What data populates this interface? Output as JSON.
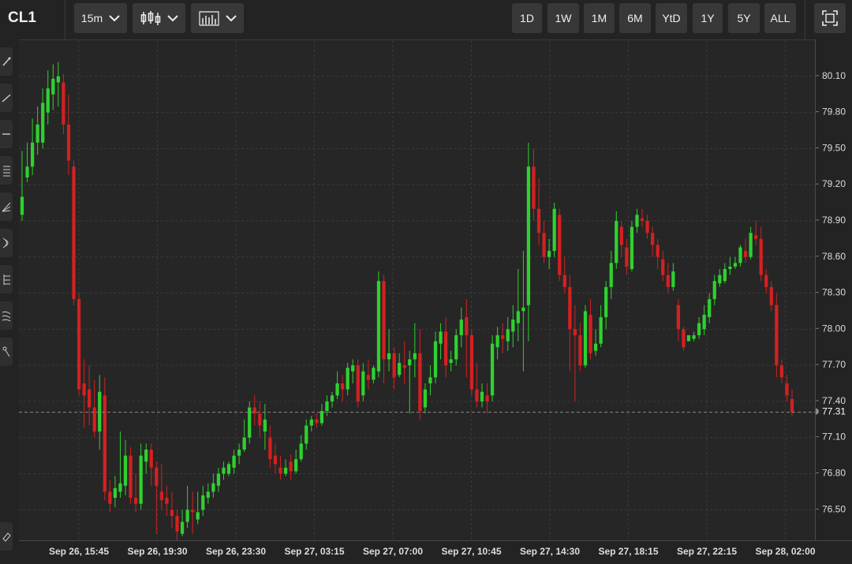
{
  "header": {
    "symbol": "CL1",
    "interval": "15m",
    "ranges": [
      "1D",
      "1W",
      "1M",
      "6M",
      "YtD",
      "1Y",
      "5Y",
      "ALL"
    ]
  },
  "sidebar": {
    "tools": [
      "pencil-icon",
      "trend-line-icon",
      "horizontal-line-icon",
      "fib-icon",
      "pitchfork-icon",
      "arc-icon",
      "channel-icon",
      "wave-icon",
      "brush-icon"
    ],
    "bottom_tool": "eraser-icon"
  },
  "colors": {
    "up": "#2fd12f",
    "down": "#d42020",
    "background": "#262626",
    "grid": "#3a3a3a"
  },
  "chart_data": {
    "type": "candlestick",
    "symbol": "CL1",
    "interval": "15m",
    "last_price": "77.31",
    "ylim": [
      76.24,
      80.4
    ],
    "y_ticks": [
      "80.10",
      "79.80",
      "79.50",
      "79.20",
      "78.90",
      "78.60",
      "78.30",
      "78.00",
      "77.70",
      "77.40",
      "77.10",
      "76.80",
      "76.50"
    ],
    "x_ticks": [
      "Sep 26, 15:45",
      "Sep 26, 19:30",
      "Sep 26, 23:30",
      "Sep 27, 03:15",
      "Sep 27, 07:00",
      "Sep 27, 10:45",
      "Sep 27, 14:30",
      "Sep 27, 18:15",
      "Sep 27, 22:15",
      "Sep 28, 02:00"
    ],
    "grid": true,
    "candles": [
      [
        78.95,
        79.48,
        79.1,
        78.9
      ],
      [
        79.26,
        79.55,
        79.35,
        79.22
      ],
      [
        79.35,
        79.75,
        79.55,
        79.28
      ],
      [
        79.55,
        79.85,
        79.7,
        79.45
      ],
      [
        79.55,
        80.0,
        79.88,
        79.5
      ],
      [
        79.8,
        80.15,
        80.0,
        79.7
      ],
      [
        79.95,
        80.2,
        80.08,
        79.82
      ],
      [
        80.05,
        80.22,
        80.1,
        79.85
      ],
      [
        80.05,
        80.12,
        79.7,
        79.62
      ],
      [
        79.7,
        79.95,
        79.4,
        79.28
      ],
      [
        79.35,
        79.4,
        78.25,
        78.2
      ],
      [
        78.25,
        78.3,
        77.5,
        77.45
      ],
      [
        77.55,
        77.75,
        77.45,
        77.18
      ],
      [
        77.5,
        77.7,
        77.35,
        77.2
      ],
      [
        77.35,
        77.58,
        77.15,
        77.1
      ],
      [
        77.15,
        77.62,
        77.48,
        77.0
      ],
      [
        77.45,
        77.6,
        76.65,
        76.58
      ],
      [
        76.65,
        76.75,
        76.55,
        76.48
      ],
      [
        76.6,
        76.78,
        76.68,
        76.52
      ],
      [
        76.65,
        77.15,
        76.72,
        76.6
      ],
      [
        76.7,
        77.08,
        76.95,
        76.62
      ],
      [
        76.95,
        77.02,
        76.6,
        76.55
      ],
      [
        76.6,
        76.8,
        76.55,
        76.48
      ],
      [
        76.55,
        77.05,
        76.95,
        76.5
      ],
      [
        76.9,
        77.05,
        77.0,
        76.8
      ],
      [
        77.0,
        77.05,
        76.85,
        76.7
      ],
      [
        76.85,
        76.9,
        76.7,
        76.3
      ],
      [
        76.65,
        76.88,
        76.58,
        76.5
      ],
      [
        76.6,
        76.7,
        76.55,
        76.45
      ],
      [
        76.5,
        76.65,
        76.45,
        76.35
      ],
      [
        76.45,
        76.5,
        76.32,
        76.22
      ],
      [
        76.3,
        76.5,
        76.4,
        76.28
      ],
      [
        76.4,
        76.7,
        76.5,
        76.35
      ],
      [
        76.5,
        76.65,
        76.48,
        76.3
      ],
      [
        76.42,
        76.65,
        76.48,
        76.38
      ],
      [
        76.5,
        76.7,
        76.62,
        76.45
      ],
      [
        76.6,
        76.72,
        76.65,
        76.55
      ],
      [
        76.65,
        76.8,
        76.72,
        76.6
      ],
      [
        76.7,
        76.85,
        76.8,
        76.65
      ],
      [
        76.8,
        76.9,
        76.85,
        76.75
      ],
      [
        76.8,
        76.9,
        76.88,
        76.78
      ],
      [
        76.85,
        77.0,
        76.95,
        76.8
      ],
      [
        76.95,
        77.05,
        77.0,
        76.88
      ],
      [
        77.0,
        77.25,
        77.1,
        76.98
      ],
      [
        77.1,
        77.4,
        77.35,
        77.05
      ],
      [
        77.35,
        77.45,
        77.3,
        77.2
      ],
      [
        77.3,
        77.4,
        77.2,
        77.1
      ],
      [
        77.15,
        77.38,
        77.25,
        77.0
      ],
      [
        77.1,
        77.2,
        76.92,
        76.85
      ],
      [
        76.95,
        77.05,
        76.88,
        76.8
      ],
      [
        76.85,
        76.95,
        76.8,
        76.75
      ],
      [
        76.8,
        76.92,
        76.85,
        76.78
      ],
      [
        76.9,
        76.96,
        76.82,
        76.75
      ],
      [
        76.82,
        77.0,
        76.92,
        76.8
      ],
      [
        76.92,
        77.12,
        77.05,
        76.9
      ],
      [
        77.05,
        77.25,
        77.2,
        77.0
      ],
      [
        77.2,
        77.28,
        77.25,
        77.15
      ],
      [
        77.25,
        77.3,
        77.22,
        77.18
      ],
      [
        77.22,
        77.38,
        77.32,
        77.2
      ],
      [
        77.32,
        77.45,
        77.4,
        77.28
      ],
      [
        77.4,
        77.48,
        77.45,
        77.35
      ],
      [
        77.45,
        77.65,
        77.55,
        77.42
      ],
      [
        77.55,
        77.62,
        77.5,
        77.4
      ],
      [
        77.5,
        77.72,
        77.68,
        77.45
      ],
      [
        77.65,
        77.75,
        77.7,
        77.55
      ],
      [
        77.7,
        77.75,
        77.4,
        77.35
      ],
      [
        77.45,
        77.72,
        77.65,
        77.4
      ],
      [
        77.62,
        77.75,
        77.58,
        77.5
      ],
      [
        77.58,
        77.7,
        77.68,
        77.55
      ],
      [
        77.65,
        78.48,
        78.4,
        77.6
      ],
      [
        78.4,
        78.45,
        77.75,
        77.55
      ],
      [
        77.75,
        78.0,
        77.8,
        77.65
      ],
      [
        77.8,
        77.85,
        77.6,
        77.5
      ],
      [
        77.62,
        77.8,
        77.72,
        77.6
      ],
      [
        77.7,
        77.9,
        77.68,
        77.55
      ],
      [
        77.7,
        77.82,
        77.75,
        77.3
      ],
      [
        77.75,
        78.05,
        77.8,
        77.6
      ],
      [
        77.8,
        78.0,
        77.32,
        77.25
      ],
      [
        77.35,
        77.55,
        77.5,
        77.3
      ],
      [
        77.55,
        77.7,
        77.6,
        77.45
      ],
      [
        77.6,
        77.98,
        77.9,
        77.55
      ],
      [
        77.88,
        78.05,
        77.98,
        77.75
      ],
      [
        77.98,
        78.1,
        77.7,
        77.6
      ],
      [
        77.72,
        77.82,
        77.75,
        77.65
      ],
      [
        77.75,
        78.0,
        77.95,
        77.7
      ],
      [
        77.95,
        78.18,
        78.08,
        77.85
      ],
      [
        78.1,
        78.25,
        77.95,
        77.6
      ],
      [
        77.95,
        78.0,
        77.5,
        77.45
      ],
      [
        77.5,
        77.72,
        77.4,
        77.35
      ],
      [
        77.4,
        77.55,
        77.48,
        77.35
      ],
      [
        77.45,
        77.55,
        77.4,
        77.3
      ],
      [
        77.45,
        77.95,
        77.88,
        77.4
      ],
      [
        77.85,
        78.02,
        77.95,
        77.75
      ],
      [
        77.95,
        78.05,
        77.92,
        77.8
      ],
      [
        77.9,
        78.1,
        78.0,
        77.82
      ],
      [
        77.98,
        78.2,
        78.08,
        77.85
      ],
      [
        78.05,
        78.5,
        78.15,
        77.9
      ],
      [
        78.15,
        78.65,
        78.18,
        77.65
      ],
      [
        78.2,
        79.55,
        79.35,
        77.9
      ],
      [
        79.35,
        79.5,
        79.0,
        78.9
      ],
      [
        79.0,
        79.25,
        78.8,
        78.7
      ],
      [
        78.8,
        78.9,
        78.6,
        78.55
      ],
      [
        78.6,
        78.75,
        78.65,
        78.5
      ],
      [
        78.65,
        79.05,
        79.0,
        78.6
      ],
      [
        78.95,
        79.0,
        78.45,
        78.4
      ],
      [
        78.45,
        78.6,
        78.35,
        78.3
      ],
      [
        78.35,
        78.45,
        78.0,
        77.65
      ],
      [
        78.0,
        78.2,
        77.95,
        77.4
      ],
      [
        77.95,
        78.05,
        77.7,
        77.65
      ],
      [
        77.7,
        78.2,
        78.15,
        77.68
      ],
      [
        78.12,
        78.25,
        77.8,
        77.75
      ],
      [
        77.82,
        78.0,
        77.88,
        77.78
      ],
      [
        77.88,
        78.2,
        78.1,
        77.85
      ],
      [
        78.1,
        78.4,
        78.35,
        78.0
      ],
      [
        78.35,
        78.65,
        78.55,
        78.25
      ],
      [
        78.55,
        78.98,
        78.9,
        78.5
      ],
      [
        78.85,
        78.9,
        78.7,
        78.6
      ],
      [
        78.68,
        78.75,
        78.52,
        78.45
      ],
      [
        78.5,
        78.9,
        78.85,
        78.48
      ],
      [
        78.85,
        79.0,
        78.95,
        78.8
      ],
      [
        78.92,
        79.0,
        78.9,
        78.85
      ],
      [
        78.9,
        78.95,
        78.8,
        78.75
      ],
      [
        78.8,
        78.85,
        78.7,
        78.6
      ],
      [
        78.7,
        78.75,
        78.6,
        78.5
      ],
      [
        78.58,
        78.65,
        78.45,
        78.4
      ],
      [
        78.45,
        78.55,
        78.35,
        78.3
      ],
      [
        78.35,
        78.55,
        78.48,
        78.32
      ],
      [
        78.2,
        78.25,
        78.0,
        77.9
      ],
      [
        78.0,
        78.02,
        77.85,
        77.82
      ],
      [
        77.9,
        77.95,
        77.95,
        77.92
      ],
      [
        77.92,
        77.98,
        77.95,
        77.9
      ],
      [
        77.95,
        78.1,
        78.05,
        77.92
      ],
      [
        78.0,
        78.2,
        78.12,
        77.95
      ],
      [
        78.1,
        78.3,
        78.25,
        78.05
      ],
      [
        78.25,
        78.45,
        78.4,
        78.2
      ],
      [
        78.38,
        78.5,
        78.45,
        78.35
      ],
      [
        78.4,
        78.55,
        78.5,
        78.38
      ],
      [
        78.5,
        78.6,
        78.52,
        78.45
      ],
      [
        78.52,
        78.6,
        78.55,
        78.5
      ],
      [
        78.55,
        78.7,
        78.68,
        78.52
      ],
      [
        78.65,
        78.75,
        78.6,
        78.55
      ],
      [
        78.6,
        78.85,
        78.8,
        78.58
      ],
      [
        78.78,
        78.9,
        78.75,
        78.7
      ],
      [
        78.75,
        78.85,
        78.45,
        78.4
      ],
      [
        78.45,
        78.5,
        78.35,
        78.3
      ],
      [
        78.35,
        78.4,
        78.2,
        78.15
      ],
      [
        78.2,
        78.3,
        77.7,
        77.6
      ],
      [
        77.7,
        77.75,
        77.6,
        77.55
      ],
      [
        77.55,
        77.62,
        77.45,
        77.4
      ],
      [
        77.42,
        77.5,
        77.31,
        77.28
      ]
    ]
  }
}
